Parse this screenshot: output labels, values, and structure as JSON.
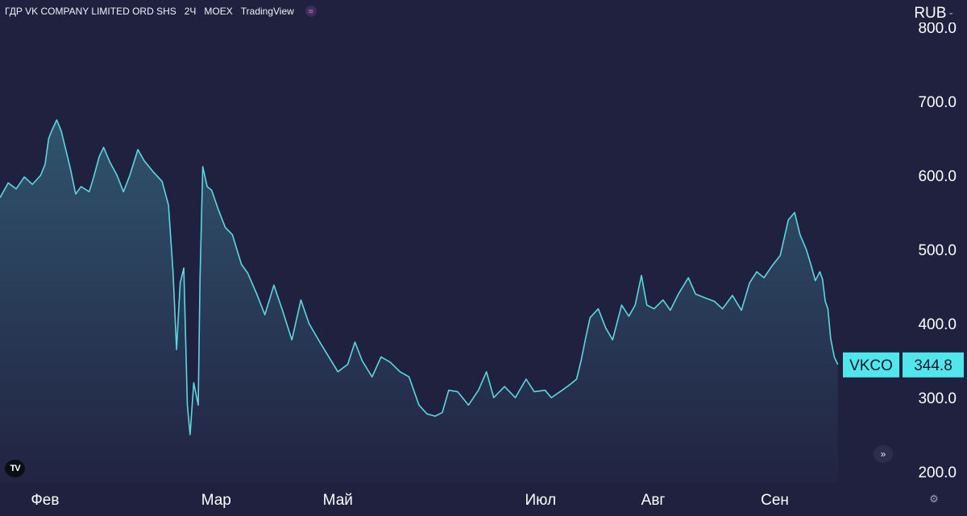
{
  "header": {
    "symbol_name": "ГДР VK COMPANY LIMITED ORD SHS",
    "interval": "2Ч",
    "exchange": "MOEX",
    "source": "TradingView"
  },
  "currency": "RUB",
  "colors": {
    "background": "#20203f",
    "line": "#5ad8e0",
    "badge_bg": "#4fe6ec",
    "badge_text": "#16162a",
    "axis_text": "#ffffff"
  },
  "icons": {
    "header_logo": "tradingview-badge-icon",
    "watermark": "tradingview-logo-icon",
    "scroll": "double-chevron-right-icon",
    "settings": "gear-icon",
    "currency_menu": "chevron-down-icon"
  },
  "chart_data": {
    "type": "area",
    "title": "",
    "xlabel": "",
    "ylabel": "",
    "ylim": [
      200,
      800
    ],
    "yticks": [
      200,
      300,
      400,
      500,
      600,
      700,
      800
    ],
    "ytick_labels": [
      "200.0",
      "300.0",
      "400.0",
      "500.0",
      "600.0",
      "700.0",
      "800.0"
    ],
    "xlim": [
      0,
      100
    ],
    "xticks": [
      {
        "x": 5,
        "label": "Фев"
      },
      {
        "x": 24,
        "label": "Мар"
      },
      {
        "x": 37.5,
        "label": "Май"
      },
      {
        "x": 60,
        "label": "Июл"
      },
      {
        "x": 72.5,
        "label": "Авг"
      },
      {
        "x": 86,
        "label": "Сен"
      }
    ],
    "grid": false,
    "legend": "none",
    "last_value": {
      "ticker": "VKCO",
      "value": 344.8,
      "label": "344.8"
    },
    "series": [
      {
        "values": [
          [
            0,
            570
          ],
          [
            0.9,
            590
          ],
          [
            1.8,
            582
          ],
          [
            2.7,
            598
          ],
          [
            3.6,
            588
          ],
          [
            4.5,
            600
          ],
          [
            5.0,
            615
          ],
          [
            5.4,
            650
          ],
          [
            5.8,
            662
          ],
          [
            6.3,
            675
          ],
          [
            6.8,
            660
          ],
          [
            7.2,
            640
          ],
          [
            7.8,
            610
          ],
          [
            8.4,
            575
          ],
          [
            9.0,
            585
          ],
          [
            9.9,
            578
          ],
          [
            10.4,
            598
          ],
          [
            11.0,
            625
          ],
          [
            11.5,
            638
          ],
          [
            12.2,
            618
          ],
          [
            13.0,
            600
          ],
          [
            13.7,
            578
          ],
          [
            14.4,
            600
          ],
          [
            15.3,
            635
          ],
          [
            16.0,
            620
          ],
          [
            17.0,
            605
          ],
          [
            18.0,
            592
          ],
          [
            18.7,
            560
          ],
          [
            19.2,
            470
          ],
          [
            19.6,
            365
          ],
          [
            20.0,
            455
          ],
          [
            20.4,
            475
          ],
          [
            20.8,
            290
          ],
          [
            21.1,
            250
          ],
          [
            21.5,
            320
          ],
          [
            22.0,
            290
          ],
          [
            22.2,
            460
          ],
          [
            22.5,
            612
          ],
          [
            23.0,
            585
          ],
          [
            23.5,
            580
          ],
          [
            24.2,
            555
          ],
          [
            25.0,
            530
          ],
          [
            25.8,
            520
          ],
          [
            26.8,
            480
          ],
          [
            27.5,
            468
          ],
          [
            28.5,
            440
          ],
          [
            29.4,
            412
          ],
          [
            30.4,
            452
          ],
          [
            31.3,
            420
          ],
          [
            32.4,
            378
          ],
          [
            33.4,
            432
          ],
          [
            34.3,
            400
          ],
          [
            35.5,
            375
          ],
          [
            36.5,
            355
          ],
          [
            37.5,
            335
          ],
          [
            38.6,
            345
          ],
          [
            39.4,
            375
          ],
          [
            40.2,
            350
          ],
          [
            41.3,
            328
          ],
          [
            42.3,
            355
          ],
          [
            43.3,
            348
          ],
          [
            44.4,
            335
          ],
          [
            45.4,
            328
          ],
          [
            46.5,
            290
          ],
          [
            47.4,
            278
          ],
          [
            48.3,
            275
          ],
          [
            49.1,
            280
          ],
          [
            49.8,
            310
          ],
          [
            50.8,
            308
          ],
          [
            52.0,
            290
          ],
          [
            53.1,
            310
          ],
          [
            54.0,
            335
          ],
          [
            54.8,
            300
          ],
          [
            56.0,
            315
          ],
          [
            57.2,
            300
          ],
          [
            58.4,
            325
          ],
          [
            59.3,
            308
          ],
          [
            60.5,
            310
          ],
          [
            61.2,
            300
          ],
          [
            62.4,
            310
          ],
          [
            63.3,
            318
          ],
          [
            64.0,
            325
          ],
          [
            64.5,
            350
          ],
          [
            65.0,
            380
          ],
          [
            65.5,
            408
          ],
          [
            66.4,
            420
          ],
          [
            67.2,
            395
          ],
          [
            68.0,
            378
          ],
          [
            69.0,
            425
          ],
          [
            69.8,
            410
          ],
          [
            70.5,
            425
          ],
          [
            71.2,
            465
          ],
          [
            71.8,
            425
          ],
          [
            72.6,
            420
          ],
          [
            73.6,
            432
          ],
          [
            74.4,
            418
          ],
          [
            75.3,
            440
          ],
          [
            76.4,
            462
          ],
          [
            77.2,
            440
          ],
          [
            78.2,
            435
          ],
          [
            79.3,
            430
          ],
          [
            80.2,
            420
          ],
          [
            81.3,
            438
          ],
          [
            82.3,
            418
          ],
          [
            83.2,
            455
          ],
          [
            84.0,
            470
          ],
          [
            84.8,
            462
          ],
          [
            85.7,
            478
          ],
          [
            86.6,
            492
          ],
          [
            87.5,
            540
          ],
          [
            88.2,
            550
          ],
          [
            88.8,
            520
          ],
          [
            89.5,
            500
          ],
          [
            90.0,
            480
          ],
          [
            90.5,
            458
          ],
          [
            91.0,
            470
          ],
          [
            91.3,
            460
          ],
          [
            91.6,
            430
          ],
          [
            91.9,
            420
          ],
          [
            92.2,
            380
          ],
          [
            92.6,
            355
          ],
          [
            93.0,
            344.8
          ]
        ]
      }
    ]
  }
}
